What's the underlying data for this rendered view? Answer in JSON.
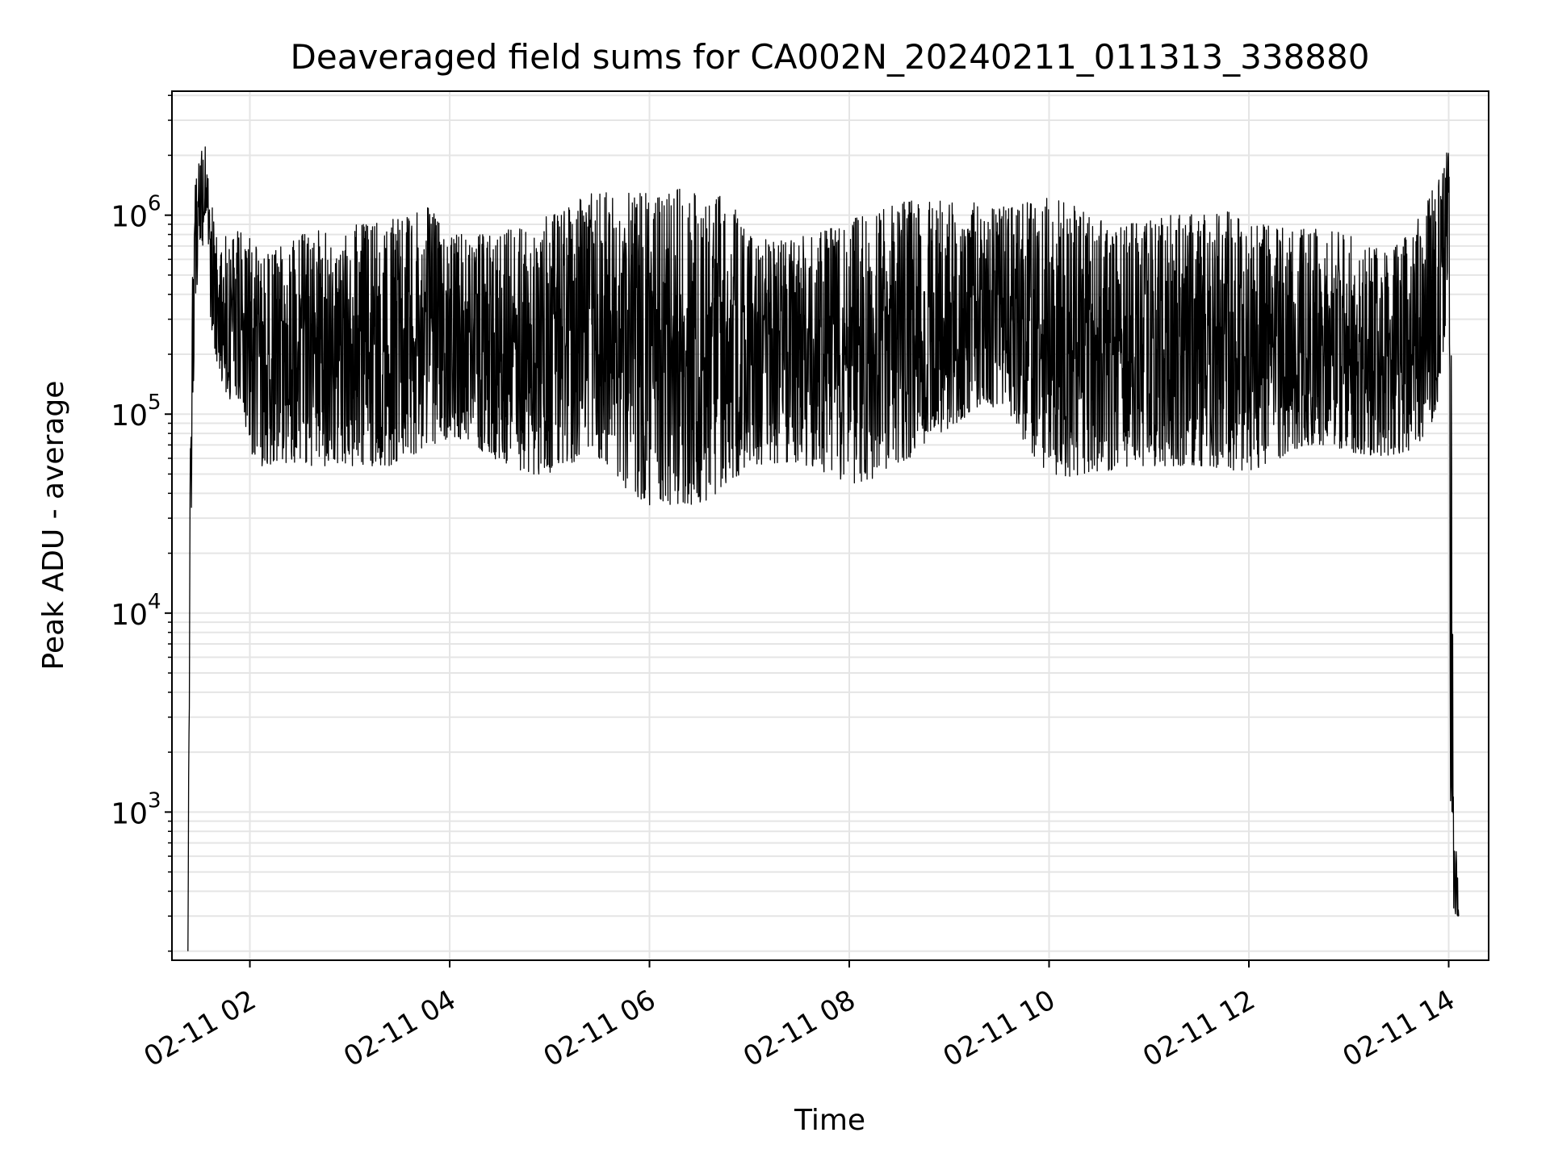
{
  "chart_data": {
    "type": "line",
    "title": "Deaveraged field sums for CA002N_20240211_011313_338880",
    "xlabel": "Time",
    "ylabel": "Peak ADU - average",
    "yscale": "log",
    "ylim": [
      180,
      4200000
    ],
    "xlim": [
      "02-11 01:13",
      "02-11 14:24"
    ],
    "x_unit": "hours",
    "x_ticks": [
      {
        "value": 2,
        "label": "02-11 02"
      },
      {
        "value": 4,
        "label": "02-11 04"
      },
      {
        "value": 6,
        "label": "02-11 06"
      },
      {
        "value": 8,
        "label": "02-11 08"
      },
      {
        "value": 10,
        "label": "02-11 10"
      },
      {
        "value": 12,
        "label": "02-11 12"
      },
      {
        "value": 14,
        "label": "02-11 14"
      }
    ],
    "y_ticks": [
      {
        "value": 1000,
        "base": "10",
        "exp": "3"
      },
      {
        "value": 10000,
        "base": "10",
        "exp": "4"
      },
      {
        "value": 100000,
        "base": "10",
        "exp": "5"
      },
      {
        "value": 1000000,
        "base": "10",
        "exp": "6"
      }
    ],
    "grid": true,
    "line_color": "#000000",
    "grid_color": "#e5e5e5",
    "series": [
      {
        "x": [
          1.38,
          1.4,
          1.42,
          1.45,
          1.5,
          1.55,
          1.6,
          1.7,
          1.8,
          1.9,
          2.0,
          2.1,
          2.2,
          2.3,
          2.4,
          2.5,
          2.6,
          2.7,
          2.8,
          2.9,
          3.0,
          3.2,
          3.4,
          3.6,
          3.8,
          4.0,
          4.2,
          4.4,
          4.6,
          4.8,
          5.0,
          5.2,
          5.4,
          5.6,
          5.8,
          6.0,
          6.2,
          6.4,
          6.6,
          6.8,
          7.0,
          7.2,
          7.4,
          7.6,
          7.8,
          8.0,
          8.2,
          8.4,
          8.6,
          8.8,
          9.0,
          9.2,
          9.4,
          9.6,
          9.8,
          10.0,
          10.2,
          10.4,
          10.6,
          10.8,
          11.0,
          11.2,
          11.4,
          11.6,
          11.8,
          12.0,
          12.2,
          12.4,
          12.6,
          12.8,
          13.0,
          13.2,
          13.4,
          13.6,
          13.8,
          13.9,
          14.0,
          14.02,
          14.05,
          14.08,
          14.1
        ],
        "low": [
          200,
          10000,
          40000,
          300000,
          600000,
          800000,
          300000,
          150000,
          110000,
          95000,
          65000,
          55000,
          55000,
          60000,
          55000,
          60000,
          55000,
          55000,
          55000,
          55000,
          55000,
          55000,
          55000,
          60000,
          70000,
          75000,
          75000,
          60000,
          55000,
          50000,
          50000,
          55000,
          65000,
          55000,
          40000,
          35000,
          35000,
          35000,
          37000,
          45000,
          55000,
          55000,
          55000,
          55000,
          50000,
          45000,
          45000,
          55000,
          60000,
          75000,
          85000,
          100000,
          110000,
          100000,
          65000,
          50000,
          48000,
          50000,
          52000,
          55000,
          55000,
          55000,
          55000,
          55000,
          52000,
          52000,
          55000,
          65000,
          70000,
          70000,
          65000,
          62000,
          62000,
          65000,
          80000,
          120000,
          400000,
          350,
          300,
          300,
          300
        ],
        "high": [
          200,
          60000,
          400000,
          1500000,
          2000000,
          2300000,
          1200000,
          900000,
          800000,
          850000,
          800000,
          650000,
          650000,
          700000,
          750000,
          800000,
          800000,
          850000,
          850000,
          850000,
          900000,
          900000,
          950000,
          1000000,
          1100000,
          800000,
          800000,
          800000,
          850000,
          900000,
          1000000,
          1100000,
          1300000,
          1300000,
          1300000,
          1300000,
          1350000,
          1350000,
          1300000,
          1200000,
          800000,
          750000,
          750000,
          800000,
          850000,
          950000,
          1000000,
          1100000,
          1200000,
          1200000,
          1200000,
          1200000,
          1100000,
          1100000,
          1200000,
          1250000,
          1150000,
          1000000,
          900000,
          900000,
          950000,
          1000000,
          1000000,
          1050000,
          1050000,
          1000000,
          900000,
          850000,
          850000,
          850000,
          800000,
          700000,
          650000,
          800000,
          1200000,
          1600000,
          2200000,
          1000000,
          700,
          700,
          300
        ]
      }
    ]
  }
}
